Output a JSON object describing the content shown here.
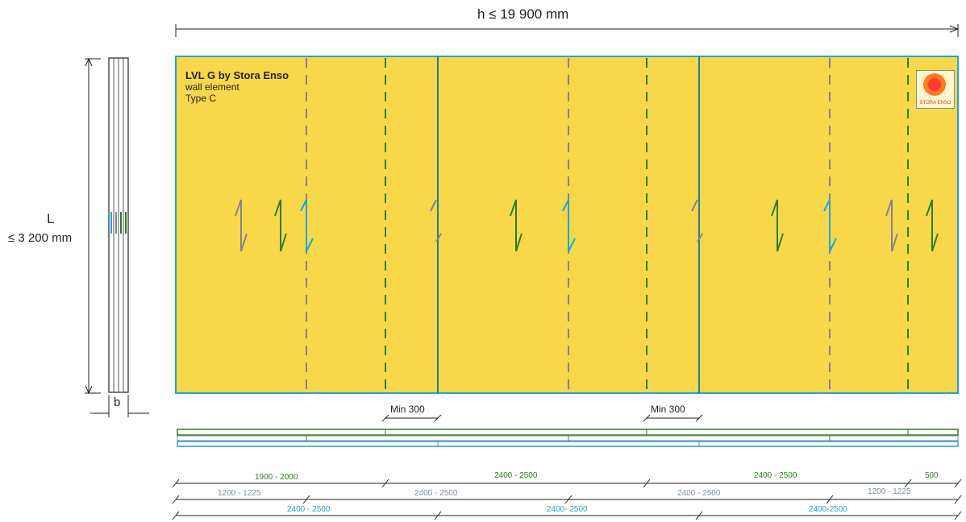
{
  "header": {
    "height_label": "h ≤ 19 900 mm"
  },
  "side": {
    "length_symbol": "L",
    "length_value": "≤ 3 200 mm",
    "thickness_symbol": "b"
  },
  "panel": {
    "name": "LVL G  by Stora Enso",
    "line2": "wall element",
    "line3": "Type C",
    "logo_text": "STORA ENSO"
  },
  "laps": [
    "Min 300",
    "Min 300"
  ],
  "dimensions": {
    "green_row": [
      "1900 - 2000",
      "2400 - 2500",
      "2400 - 2500",
      "500"
    ],
    "grey_row": [
      "1200 - 1225",
      "2400 - 2500",
      "2400 - 2500",
      "1200 - 1225"
    ],
    "blue_row": [
      "2400 - 2500",
      "2400- 2500",
      "2400-2500"
    ]
  },
  "colors": {
    "panel_fill": "#f7d84a",
    "panel_border": "#1ea4d8",
    "green": "#2e7d1f",
    "grey": "#8a7f8e",
    "blue": "#1ea4d8"
  }
}
